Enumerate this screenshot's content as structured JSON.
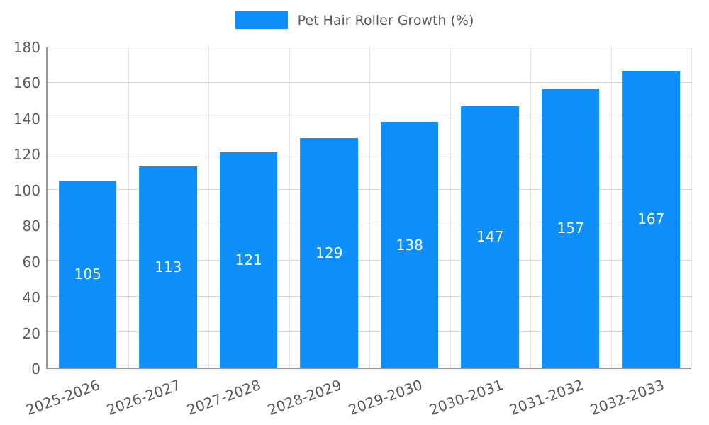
{
  "chart_data": {
    "type": "bar",
    "title": "Pet Hair Roller Growth (%)",
    "categories": [
      "2025-2026",
      "2026-2027",
      "2027-2028",
      "2028-2029",
      "2029-2030",
      "2030-2031",
      "2031-2032",
      "2032-2033"
    ],
    "values": [
      105,
      113,
      121,
      129,
      138,
      147,
      157,
      167
    ],
    "xlabel": "",
    "ylabel": "",
    "ylim": [
      0,
      180
    ],
    "yticks": [
      0,
      20,
      40,
      60,
      80,
      100,
      120,
      140,
      160,
      180
    ],
    "grid": true,
    "legend_position": "top",
    "bar_color": "#0d8ef8",
    "value_label_color": "#ffffff",
    "axis_text_color": "#595959"
  }
}
